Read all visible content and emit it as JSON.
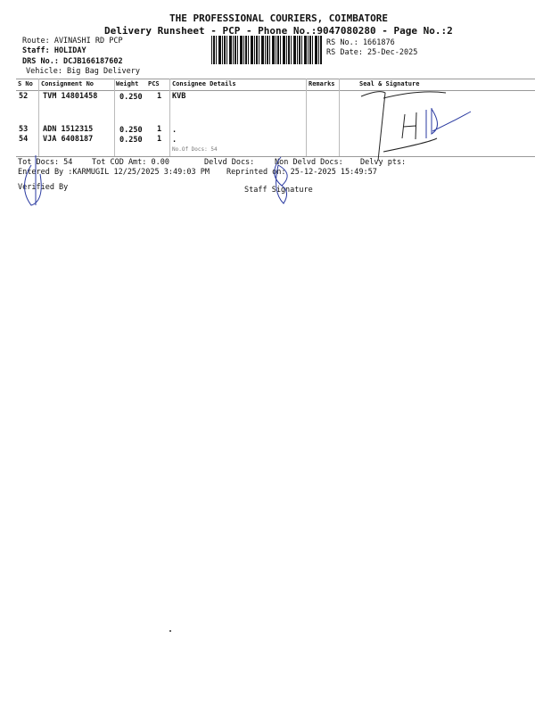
{
  "header": {
    "company": "THE PROFESSIONAL COURIERS, COIMBATORE",
    "subtitle": "Delivery Runsheet - PCP - Phone No.:9047080280 - Page No.:2",
    "route": "Route: AVINASHI RD PCP",
    "staff": "Staff: HOLIDAY",
    "drs": "DRS No.: DCJB166187602",
    "vehicle": "Vehicle: Big Bag Delivery",
    "rs_no": "RS No.: 1661876",
    "rs_date": "RS Date: 25-Dec-2025"
  },
  "table": {
    "columns": [
      "S No",
      "Consignment No",
      "Weight",
      "PCS",
      "Consignee Details",
      "Remarks",
      "Seal & Signature"
    ],
    "rows": [
      {
        "sno": "52",
        "consignment": "TVM 14801458",
        "weight": "0.250",
        "pcs": "1",
        "consignee": "KVB"
      },
      {
        "sno": "53",
        "consignment": "ADN 1512315",
        "weight": "0.250",
        "pcs": "1",
        "consignee": "."
      },
      {
        "sno": "54",
        "consignment": "VJA 6408187",
        "weight": "0.250",
        "pcs": "1",
        "consignee": "."
      }
    ],
    "no_of_docs": "No.Of Docs: 54"
  },
  "footer": {
    "tot_docs": "Tot Docs:  54",
    "tot_cod": "Tot COD Amt:    0.00",
    "delvd_docs": "Delvd Docs:",
    "non_delvd_docs": "Non Delvd Docs:",
    "delvy_pts": "Delvy pts:",
    "entered_by": "Entered By :KARMUGIL 12/25/2025 3:49:03 PM",
    "reprinted_on": "Reprinted on: 25-12-2025 15:49:57",
    "verified_by": "Verified By",
    "staff_signature": "Staff Signature"
  },
  "handwriting": {
    "seal_text": "H"
  }
}
